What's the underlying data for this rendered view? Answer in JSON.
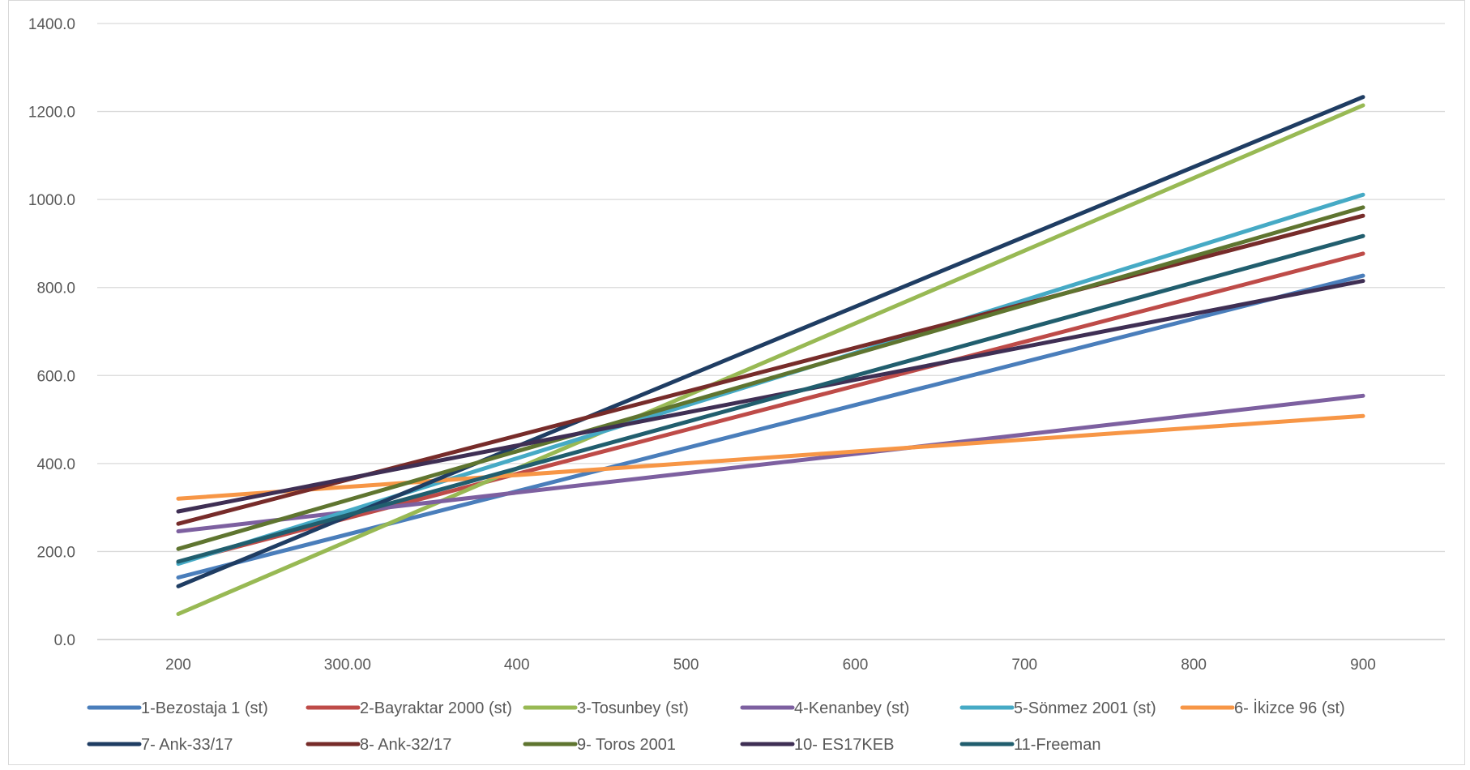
{
  "chart_data": {
    "type": "line",
    "title": "",
    "xlabel": "",
    "ylabel": "",
    "x": [
      200,
      300,
      400,
      500,
      600,
      700,
      800,
      900
    ],
    "x_tick_labels": [
      "200",
      "300.00",
      "400",
      "500",
      "600",
      "700",
      "800",
      "900"
    ],
    "ylim": [
      0,
      1400
    ],
    "y_ticks": [
      0,
      200,
      400,
      600,
      800,
      1000,
      1200,
      1400
    ],
    "y_tick_labels": [
      "0.0",
      "200.0",
      "400.0",
      "600.0",
      "800.0",
      "1000.0",
      "1200.0",
      "1400.0"
    ],
    "grid": "horizontal",
    "legend_position": "bottom",
    "series": [
      {
        "name": "1-Bezostaja 1 (st)",
        "color": "#4a7ebb",
        "points": [
          [
            200,
            141
          ],
          [
            900,
            827
          ]
        ]
      },
      {
        "name": "2-Bayraktar 2000 (st)",
        "color": "#be4b48",
        "points": [
          [
            200,
            176
          ],
          [
            900,
            877
          ]
        ]
      },
      {
        "name": "3-Tosunbey (st)",
        "color": "#98b954",
        "points": [
          [
            200,
            58
          ],
          [
            900,
            1214
          ]
        ]
      },
      {
        "name": "4-Kenanbey (st)",
        "color": "#7d60a0",
        "points": [
          [
            200,
            246
          ],
          [
            900,
            554
          ]
        ]
      },
      {
        "name": "5-Sönmez 2001 (st)",
        "color": "#46aac5",
        "points": [
          [
            200,
            172
          ],
          [
            900,
            1011
          ]
        ]
      },
      {
        "name": "6- İkizce 96 (st)",
        "color": "#f79646",
        "points": [
          [
            200,
            320
          ],
          [
            900,
            508
          ]
        ]
      },
      {
        "name": "7- Ank-33/17",
        "color": "#1f3d63",
        "points": [
          [
            200,
            121
          ],
          [
            900,
            1233
          ]
        ]
      },
      {
        "name": "8- Ank-32/17",
        "color": "#772c2a",
        "points": [
          [
            200,
            263
          ],
          [
            900,
            963
          ]
        ]
      },
      {
        "name": "9- Toros 2001",
        "color": "#5f7530",
        "points": [
          [
            200,
            206
          ],
          [
            900,
            982
          ]
        ]
      },
      {
        "name": "10- ES17KEB",
        "color": "#3f2f54",
        "points": [
          [
            200,
            291
          ],
          [
            900,
            815
          ]
        ]
      },
      {
        "name": "11-Freeman",
        "color": "#215e6e",
        "points": [
          [
            200,
            177
          ],
          [
            900,
            917
          ]
        ]
      }
    ]
  }
}
